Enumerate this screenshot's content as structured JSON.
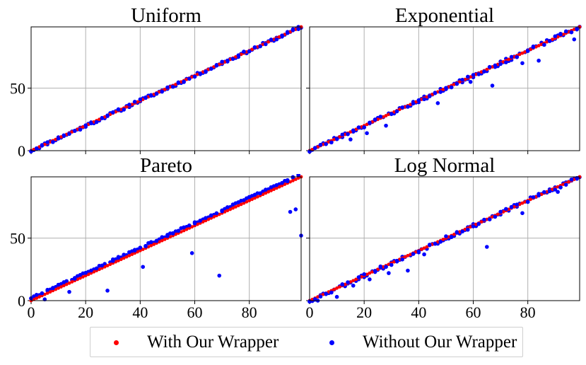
{
  "chart_data": [
    {
      "type": "scatter",
      "title": "Uniform",
      "xlim": [
        0,
        99
      ],
      "ylim": [
        0,
        99
      ],
      "xticks": [
        0,
        20,
        40,
        60,
        80
      ],
      "yticks": [
        0,
        50
      ],
      "grid": true,
      "series": [
        {
          "name": "With Our Wrapper",
          "color": "#ff0000",
          "kind": "identity",
          "n": 100
        },
        {
          "name": "Without Our Wrapper",
          "color": "#0000ff",
          "jitter": 1.2,
          "seed": 11,
          "outliers": []
        }
      ]
    },
    {
      "type": "scatter",
      "title": "Exponential",
      "xlim": [
        0,
        99
      ],
      "ylim": [
        0,
        99
      ],
      "xticks": [
        0,
        20,
        40,
        60,
        80
      ],
      "yticks": [
        0,
        50
      ],
      "grid": true,
      "series": [
        {
          "name": "With Our Wrapper",
          "color": "#ff0000",
          "kind": "identity",
          "n": 100
        },
        {
          "name": "Without Our Wrapper",
          "color": "#0000ff",
          "jitter": 1.5,
          "seed": 23,
          "outliers": [
            [
              15,
              9
            ],
            [
              21,
              14
            ],
            [
              28,
              20
            ],
            [
              47,
              38
            ],
            [
              59,
              55
            ],
            [
              67,
              52
            ],
            [
              78,
              70
            ],
            [
              84,
              72
            ],
            [
              97,
              89
            ]
          ]
        }
      ]
    },
    {
      "type": "scatter",
      "title": "Pareto",
      "xlim": [
        0,
        99
      ],
      "ylim": [
        0,
        99
      ],
      "xticks": [
        0,
        20,
        40,
        60,
        80
      ],
      "yticks": [
        0,
        50
      ],
      "grid": true,
      "series": [
        {
          "name": "With Our Wrapper",
          "color": "#ff0000",
          "kind": "identity",
          "n": 100
        },
        {
          "name": "Without Our Wrapper",
          "color": "#0000ff",
          "jitter": 0.8,
          "offset": 2.2,
          "seed": 37,
          "outliers": [
            [
              5,
              1
            ],
            [
              14,
              7
            ],
            [
              28,
              8
            ],
            [
              41,
              27
            ],
            [
              59,
              38
            ],
            [
              69,
              20
            ],
            [
              95,
              71
            ],
            [
              97,
              73
            ],
            [
              99,
              52
            ]
          ]
        }
      ]
    },
    {
      "type": "scatter",
      "title": "Log Normal",
      "xlim": [
        0,
        99
      ],
      "ylim": [
        0,
        99
      ],
      "xticks": [
        0,
        20,
        40,
        60,
        80
      ],
      "yticks": [
        0,
        50
      ],
      "grid": true,
      "series": [
        {
          "name": "With Our Wrapper",
          "color": "#ff0000",
          "kind": "identity",
          "n": 100
        },
        {
          "name": "Without Our Wrapper",
          "color": "#0000ff",
          "jitter": 1.6,
          "seed": 53,
          "outliers": [
            [
              3,
              0
            ],
            [
              10,
              3
            ],
            [
              16,
              12
            ],
            [
              22,
              17
            ],
            [
              29,
              22
            ],
            [
              36,
              24
            ],
            [
              42,
              37
            ],
            [
              65,
              43
            ],
            [
              78,
              70
            ],
            [
              91,
              87
            ]
          ]
        }
      ]
    }
  ],
  "legend": {
    "placement": "bottom",
    "items": [
      {
        "label": "With Our Wrapper",
        "color": "#ff0000"
      },
      {
        "label": "Without Our Wrapper",
        "color": "#0000ff"
      }
    ]
  }
}
